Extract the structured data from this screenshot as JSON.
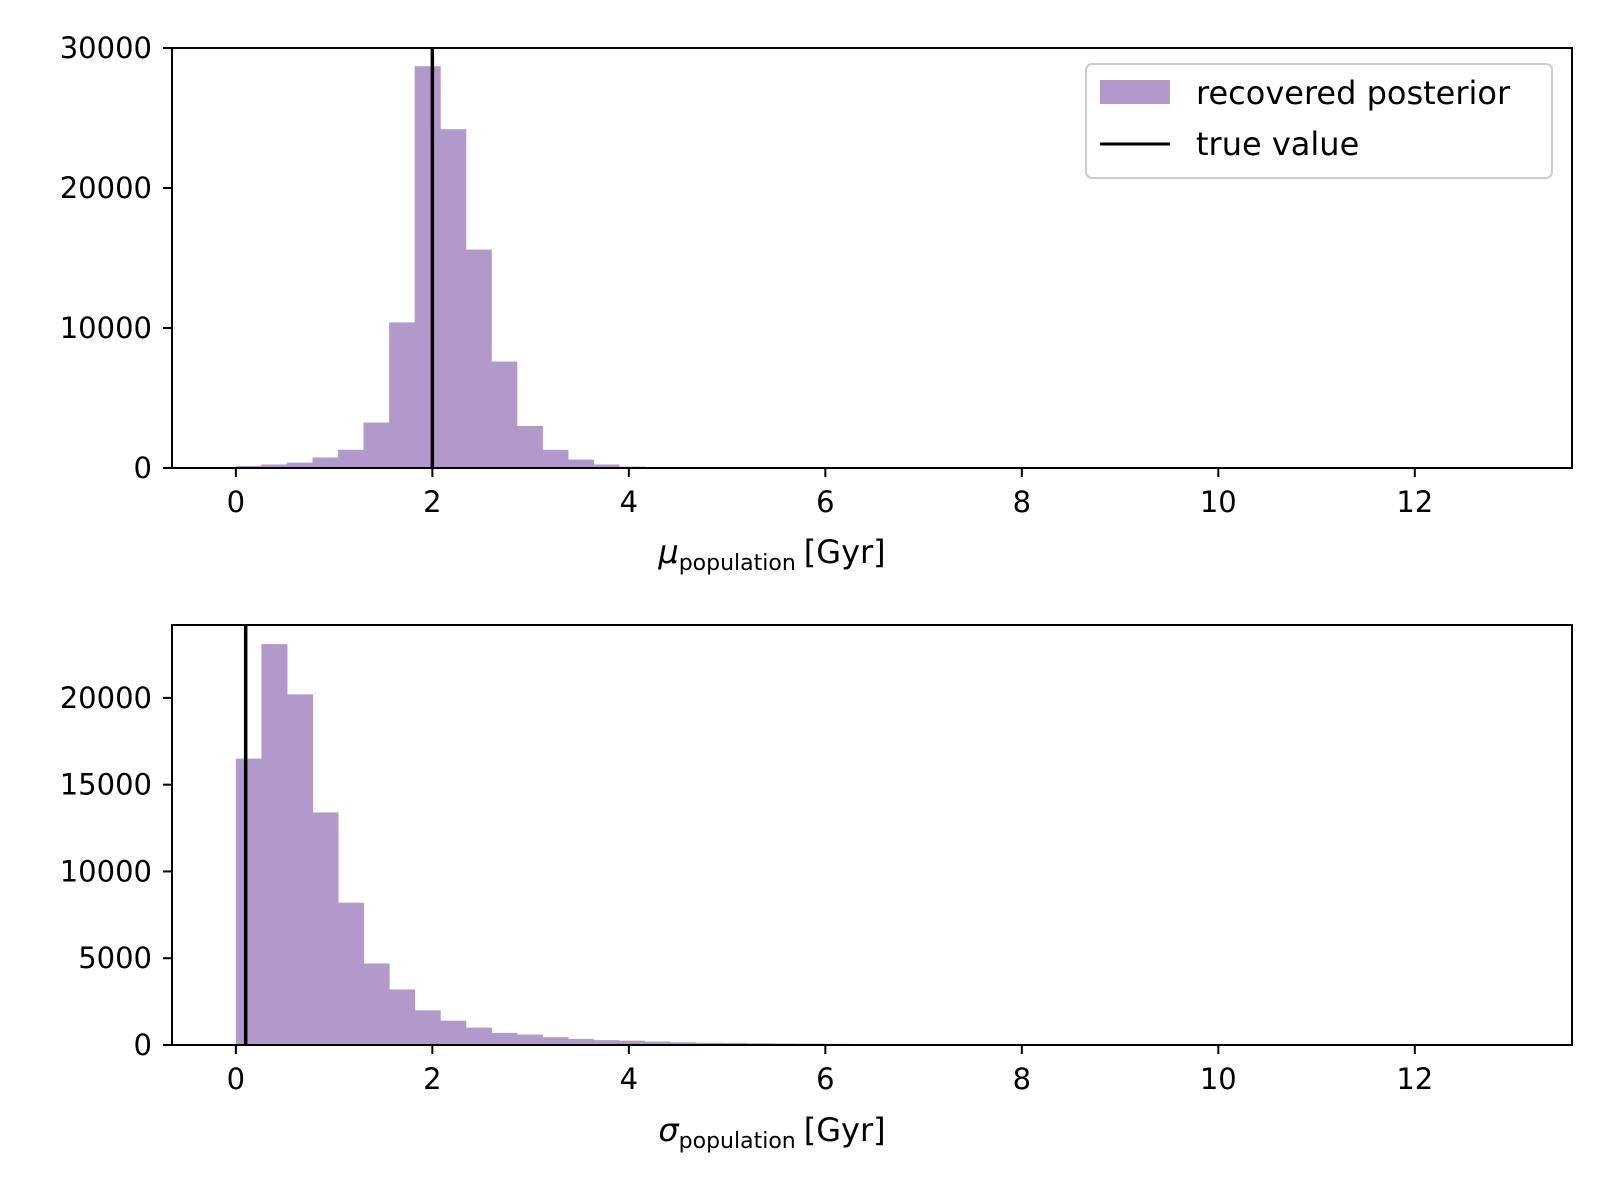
{
  "colors": {
    "bar": "#b399cb",
    "truth": "#000000",
    "axis": "#000000",
    "background": "#ffffff"
  },
  "legend": {
    "placement": "top-right",
    "entries": [
      {
        "label": "recovered posterior",
        "kind": "patch"
      },
      {
        "label": "true value",
        "kind": "line"
      }
    ]
  },
  "chart_data": [
    {
      "type": "bar",
      "panel": "top",
      "xlabel": {
        "symbol": "μ",
        "subscript": "population",
        "unit": "[Gyr]"
      },
      "ylabel": "",
      "xlim": [
        -0.65,
        13.6
      ],
      "ylim": [
        0,
        30000
      ],
      "xticks": [
        0,
        2,
        4,
        6,
        8,
        10,
        12
      ],
      "yticks": [
        0,
        10000,
        20000,
        30000
      ],
      "bin_width": 0.26,
      "bin_starts": [
        0.0,
        0.26,
        0.52,
        0.78,
        1.04,
        1.3,
        1.56,
        1.82,
        2.08,
        2.34,
        2.6,
        2.86,
        3.12,
        3.38,
        3.64,
        3.9
      ],
      "values": [
        150,
        250,
        380,
        750,
        1300,
        3250,
        10400,
        28700,
        24200,
        15600,
        7600,
        3000,
        1300,
        600,
        250,
        100
      ],
      "true_value": 2.0,
      "grid": false,
      "show_legend": true
    },
    {
      "type": "bar",
      "panel": "bottom",
      "xlabel": {
        "symbol": "σ",
        "subscript": "population",
        "unit": "[Gyr]"
      },
      "ylabel": "",
      "xlim": [
        -0.65,
        13.6
      ],
      "ylim": [
        0,
        24200
      ],
      "xticks": [
        0,
        2,
        4,
        6,
        8,
        10,
        12
      ],
      "yticks": [
        0,
        5000,
        10000,
        15000,
        20000
      ],
      "bin_width": 0.26,
      "bin_starts": [
        0.0,
        0.26,
        0.52,
        0.78,
        1.04,
        1.3,
        1.56,
        1.82,
        2.08,
        2.34,
        2.6,
        2.86,
        3.12,
        3.38,
        3.64,
        3.9,
        4.16,
        4.42,
        4.68,
        4.94,
        5.2,
        5.46,
        5.72,
        5.98,
        6.24,
        6.5,
        6.76,
        7.02,
        7.28,
        7.54,
        7.8
      ],
      "values": [
        16500,
        23100,
        20200,
        13400,
        8200,
        4700,
        3200,
        2000,
        1400,
        1000,
        700,
        600,
        450,
        350,
        280,
        250,
        200,
        160,
        130,
        120,
        100,
        90,
        80,
        70,
        60,
        50,
        40,
        30,
        30,
        25,
        40
      ],
      "true_value": 0.1,
      "grid": false,
      "show_legend": false
    }
  ]
}
